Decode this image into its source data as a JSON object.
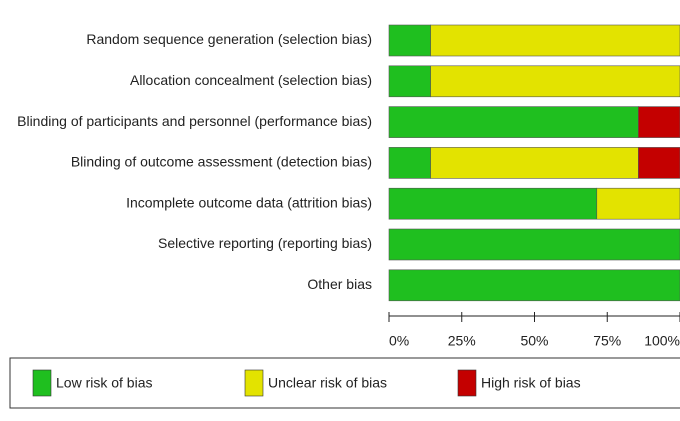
{
  "chart_data": {
    "type": "bar",
    "categories": [
      "Random sequence generation (selection bias)",
      "Allocation concealment (selection bias)",
      "Blinding of participants and personnel (performance bias)",
      "Blinding of outcome assessment (detection bias)",
      "Incomplete outcome data (attrition bias)",
      "Selective reporting (reporting bias)",
      "Other bias"
    ],
    "series": [
      {
        "name": "Low risk of bias",
        "color": "#1fbf1f",
        "values": [
          14.3,
          14.3,
          85.7,
          14.3,
          71.4,
          100,
          100
        ]
      },
      {
        "name": "Unclear risk of bias",
        "color": "#e3e300",
        "values": [
          85.7,
          85.7,
          0,
          71.4,
          28.6,
          0,
          0
        ]
      },
      {
        "name": "High risk of bias",
        "color": "#c40000",
        "values": [
          0,
          0,
          14.3,
          14.3,
          0,
          0,
          0
        ]
      }
    ],
    "xlim": [
      0,
      100
    ],
    "xticks": [
      {
        "value": 0,
        "label": "0%"
      },
      {
        "value": 25,
        "label": "25%"
      },
      {
        "value": 50,
        "label": "50%"
      },
      {
        "value": 75,
        "label": "75%"
      },
      {
        "value": 100,
        "label": "100%"
      }
    ]
  }
}
